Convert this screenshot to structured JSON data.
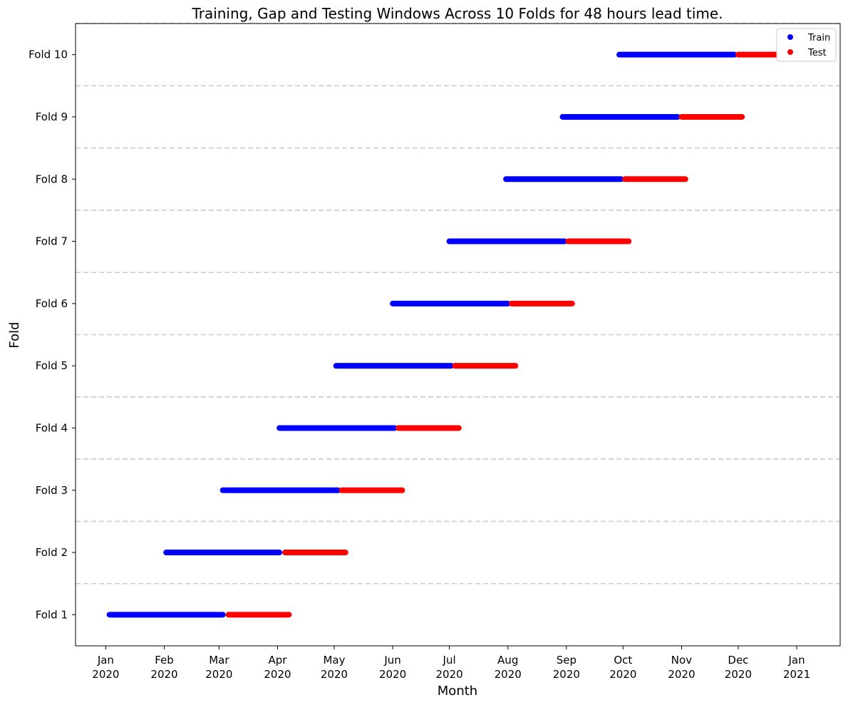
{
  "chart_data": {
    "type": "scatter",
    "title": "Training, Gap and Testing Windows Across 10 Folds for 48 hours lead time.",
    "xlabel": "Month",
    "ylabel": "Fold",
    "x_scale": "date",
    "xlim": [
      "2019-12-16",
      "2021-01-24"
    ],
    "ylim": [
      0.5,
      10.5
    ],
    "grid": "horizontal dashed separators between folds",
    "legend_placement": "top-right",
    "x_ticks": [
      {
        "date": "2020-01-01",
        "line1": "Jan",
        "line2": "2020"
      },
      {
        "date": "2020-02-01",
        "line1": "Feb",
        "line2": "2020"
      },
      {
        "date": "2020-03-01",
        "line1": "Mar",
        "line2": "2020"
      },
      {
        "date": "2020-04-01",
        "line1": "Apr",
        "line2": "2020"
      },
      {
        "date": "2020-05-01",
        "line1": "May",
        "line2": "2020"
      },
      {
        "date": "2020-06-01",
        "line1": "Jun",
        "line2": "2020"
      },
      {
        "date": "2020-07-01",
        "line1": "Jul",
        "line2": "2020"
      },
      {
        "date": "2020-08-01",
        "line1": "Aug",
        "line2": "2020"
      },
      {
        "date": "2020-09-01",
        "line1": "Sep",
        "line2": "2020"
      },
      {
        "date": "2020-10-01",
        "line1": "Oct",
        "line2": "2020"
      },
      {
        "date": "2020-11-01",
        "line1": "Nov",
        "line2": "2020"
      },
      {
        "date": "2020-12-01",
        "line1": "Dec",
        "line2": "2020"
      },
      {
        "date": "2021-01-01",
        "line1": "Jan",
        "line2": "2021"
      }
    ],
    "y_ticks": [
      {
        "value": 1,
        "label": "Fold 1"
      },
      {
        "value": 2,
        "label": "Fold 2"
      },
      {
        "value": 3,
        "label": "Fold 3"
      },
      {
        "value": 4,
        "label": "Fold 4"
      },
      {
        "value": 5,
        "label": "Fold 5"
      },
      {
        "value": 6,
        "label": "Fold 6"
      },
      {
        "value": 7,
        "label": "Fold 7"
      },
      {
        "value": 8,
        "label": "Fold 8"
      },
      {
        "value": 9,
        "label": "Fold 9"
      },
      {
        "value": 10,
        "label": "Fold 10"
      }
    ],
    "separators": [
      1.5,
      2.5,
      3.5,
      4.5,
      5.5,
      6.5,
      7.5,
      8.5,
      9.5,
      10.5
    ],
    "series": [
      {
        "name": "Train",
        "color": "#0000ff",
        "segments": [
          {
            "fold": 1,
            "start": "2020-01-03",
            "end": "2020-03-03"
          },
          {
            "fold": 2,
            "start": "2020-02-02",
            "end": "2020-04-02"
          },
          {
            "fold": 3,
            "start": "2020-03-03",
            "end": "2020-05-03"
          },
          {
            "fold": 4,
            "start": "2020-04-02",
            "end": "2020-06-02"
          },
          {
            "fold": 5,
            "start": "2020-05-02",
            "end": "2020-07-02"
          },
          {
            "fold": 6,
            "start": "2020-06-01",
            "end": "2020-08-01"
          },
          {
            "fold": 7,
            "start": "2020-07-01",
            "end": "2020-08-31"
          },
          {
            "fold": 8,
            "start": "2020-07-31",
            "end": "2020-09-30"
          },
          {
            "fold": 9,
            "start": "2020-08-30",
            "end": "2020-10-30"
          },
          {
            "fold": 10,
            "start": "2020-09-29",
            "end": "2020-11-29"
          }
        ]
      },
      {
        "name": "Test",
        "color": "#ff0000",
        "segments": [
          {
            "fold": 1,
            "start": "2020-03-06",
            "end": "2020-04-07"
          },
          {
            "fold": 2,
            "start": "2020-04-05",
            "end": "2020-05-07"
          },
          {
            "fold": 3,
            "start": "2020-05-05",
            "end": "2020-06-06"
          },
          {
            "fold": 4,
            "start": "2020-06-04",
            "end": "2020-07-06"
          },
          {
            "fold": 5,
            "start": "2020-07-04",
            "end": "2020-08-05"
          },
          {
            "fold": 6,
            "start": "2020-08-03",
            "end": "2020-09-04"
          },
          {
            "fold": 7,
            "start": "2020-09-02",
            "end": "2020-10-04"
          },
          {
            "fold": 8,
            "start": "2020-10-02",
            "end": "2020-11-03"
          },
          {
            "fold": 9,
            "start": "2020-11-01",
            "end": "2020-12-03"
          },
          {
            "fold": 10,
            "start": "2020-12-01",
            "end": "2021-01-02"
          }
        ]
      }
    ]
  }
}
